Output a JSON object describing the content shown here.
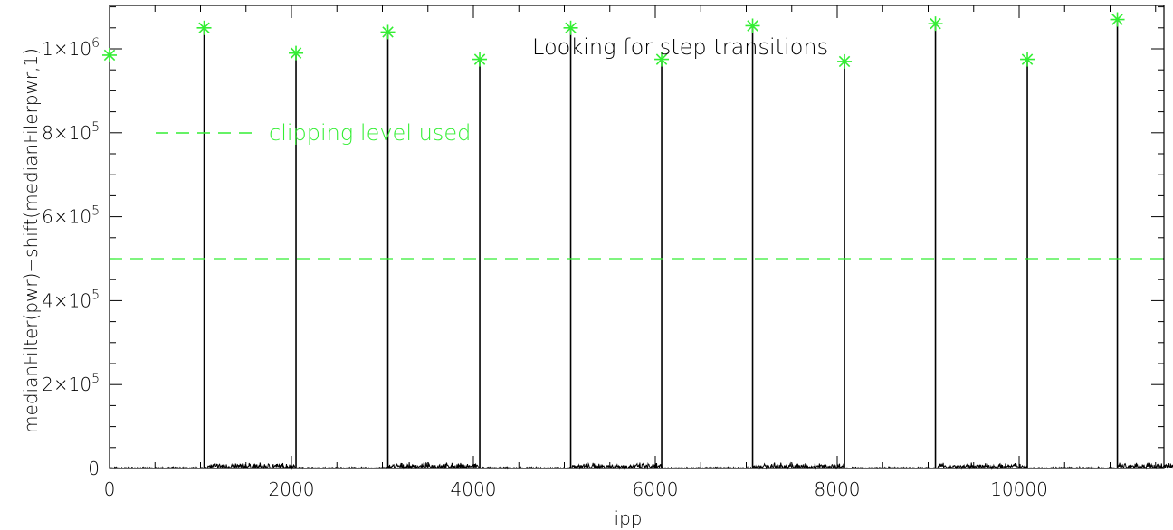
{
  "chart_data": {
    "type": "line",
    "title": "",
    "xlabel": "ipp",
    "ylabel": "medianFilter(pwr)−shift(medianFilerpwr,1)",
    "xlim": [
      0,
      11700
    ],
    "ylim": [
      0,
      1100000
    ],
    "x_ticks": [
      0,
      2000,
      4000,
      6000,
      8000,
      10000
    ],
    "x_tick_labels": [
      "0",
      "2000",
      "4000",
      "6000",
      "8000",
      "10000"
    ],
    "y_ticks": [
      0,
      200000,
      400000,
      600000,
      800000,
      1000000
    ],
    "y_tick_labels": [
      {
        "base": "0",
        "exp": ""
      },
      {
        "base": "2×10",
        "exp": "5"
      },
      {
        "base": "4×10",
        "exp": "5"
      },
      {
        "base": "6×10",
        "exp": "5"
      },
      {
        "base": "8×10",
        "exp": "5"
      },
      {
        "base": "1×10",
        "exp": "6"
      }
    ],
    "grid": false,
    "annotation": "Looking for step transitions",
    "legend_entry": "clipping level used",
    "clipping_level": 500000,
    "colors": {
      "signal": "#000000",
      "markers": "#33ee33",
      "clip_line": "#33ee33",
      "text": "#33ee33"
    },
    "series": [
      {
        "kind": "spikes",
        "x": [
          1040,
          2050,
          3060,
          4070,
          5070,
          6070,
          7070,
          8080,
          9080,
          10090,
          11080
        ],
        "y": [
          1050000,
          990000,
          1040000,
          975000,
          1050000,
          975000,
          1055000,
          970000,
          1060000,
          975000,
          1070000
        ]
      },
      {
        "kind": "markers",
        "marker": "asterisk",
        "x": [
          0,
          1040,
          2050,
          3060,
          4070,
          5070,
          6070,
          7070,
          8080,
          9080,
          10090,
          11080
        ],
        "y": [
          985000,
          1050000,
          990000,
          1040000,
          975000,
          1050000,
          975000,
          1055000,
          970000,
          1060000,
          975000,
          1070000
        ]
      }
    ],
    "noise_level": 15000
  }
}
